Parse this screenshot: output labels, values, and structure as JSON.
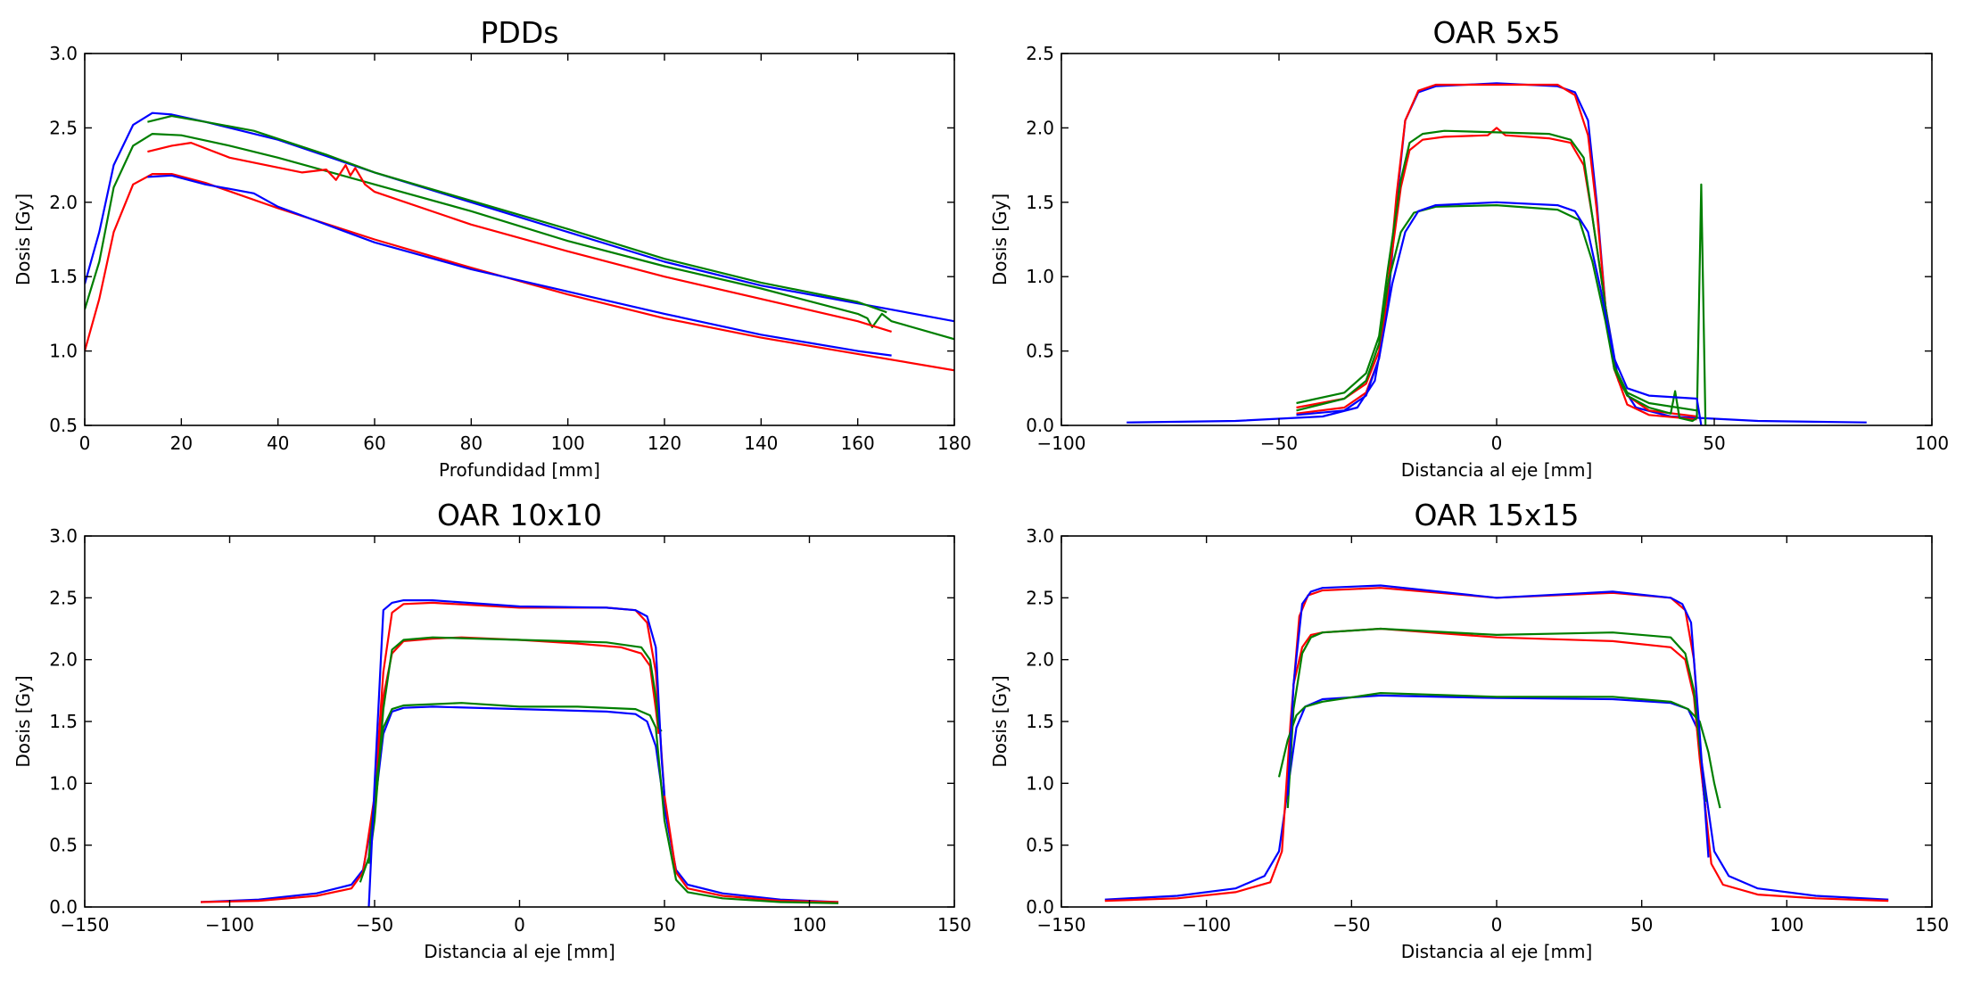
{
  "colors": {
    "blue": "#0000ff",
    "red": "#ff0000",
    "green": "#007f00"
  },
  "chart_data": [
    {
      "type": "line",
      "title": "PDDs",
      "xlabel": "Profundidad [mm]",
      "ylabel": "Dosis [Gy]",
      "xlim": [
        0,
        180
      ],
      "ylim": [
        0.5,
        3.0
      ],
      "xticks": [
        "0",
        "20",
        "40",
        "60",
        "80",
        "100",
        "120",
        "140",
        "160",
        "180"
      ],
      "yticks": [
        "0.5",
        "1.0",
        "1.5",
        "2.0",
        "2.5",
        "3.0"
      ],
      "grid": false,
      "series": [
        {
          "color": "blue",
          "x": [
            0,
            3,
            6,
            10,
            14,
            18,
            25,
            40,
            60,
            80,
            100,
            120,
            140,
            160,
            180
          ],
          "y": [
            1.45,
            1.8,
            2.25,
            2.52,
            2.6,
            2.59,
            2.54,
            2.42,
            2.2,
            2.0,
            1.8,
            1.6,
            1.44,
            1.32,
            1.2
          ]
        },
        {
          "color": "green",
          "x": [
            0,
            3,
            6,
            10,
            14,
            20,
            30,
            40,
            60,
            80,
            100,
            120,
            140,
            160,
            162,
            163,
            165,
            167,
            180
          ],
          "y": [
            1.28,
            1.6,
            2.1,
            2.38,
            2.46,
            2.45,
            2.38,
            2.3,
            2.12,
            1.94,
            1.74,
            1.57,
            1.42,
            1.25,
            1.22,
            1.16,
            1.25,
            1.2,
            1.08
          ]
        },
        {
          "color": "red",
          "x": [
            0,
            3,
            6,
            10,
            14,
            18,
            25,
            40,
            60,
            80,
            100,
            120,
            140,
            160,
            180
          ],
          "y": [
            1.0,
            1.35,
            1.8,
            2.12,
            2.19,
            2.19,
            2.13,
            1.96,
            1.75,
            1.56,
            1.38,
            1.22,
            1.09,
            0.98,
            0.87
          ]
        },
        {
          "color": "green",
          "x": [
            13,
            18,
            25,
            35,
            50,
            60,
            80,
            100,
            120,
            140,
            160,
            166
          ],
          "y": [
            2.54,
            2.58,
            2.54,
            2.48,
            2.32,
            2.2,
            2.01,
            1.82,
            1.62,
            1.46,
            1.33,
            1.26
          ]
        },
        {
          "color": "red",
          "x": [
            13,
            18,
            22,
            30,
            45,
            50,
            52,
            54,
            55,
            56,
            58,
            60,
            80,
            100,
            120,
            140,
            160,
            167
          ],
          "y": [
            2.34,
            2.38,
            2.4,
            2.3,
            2.2,
            2.22,
            2.15,
            2.25,
            2.18,
            2.23,
            2.12,
            2.07,
            1.85,
            1.67,
            1.5,
            1.35,
            1.2,
            1.13
          ]
        },
        {
          "color": "blue",
          "x": [
            13,
            18,
            25,
            35,
            40,
            60,
            80,
            100,
            120,
            140,
            160,
            167
          ],
          "y": [
            2.17,
            2.18,
            2.12,
            2.06,
            1.97,
            1.73,
            1.55,
            1.4,
            1.25,
            1.11,
            1.0,
            0.97
          ]
        }
      ]
    },
    {
      "type": "line",
      "title": "OAR 5x5",
      "xlabel": "Distancia al eje [mm]",
      "ylabel": "Dosis [Gy]",
      "xlim": [
        -100,
        100
      ],
      "ylim": [
        0.0,
        2.5
      ],
      "xticks": [
        "−100",
        "−50",
        "0",
        "50",
        "100"
      ],
      "yticks": [
        "0.0",
        "0.5",
        "1.0",
        "1.5",
        "2.0",
        "2.5"
      ],
      "grid": false,
      "series": [
        {
          "color": "blue",
          "x": [
            -85,
            -60,
            -40,
            -32,
            -28,
            -25,
            -23,
            -21,
            -18,
            -14,
            0,
            14,
            18,
            21,
            23,
            25,
            28,
            32,
            40,
            60,
            85
          ],
          "y": [
            0.02,
            0.03,
            0.06,
            0.12,
            0.3,
            0.8,
            1.5,
            2.05,
            2.24,
            2.28,
            2.3,
            2.28,
            2.24,
            2.05,
            1.5,
            0.8,
            0.3,
            0.12,
            0.06,
            0.03,
            0.02
          ]
        },
        {
          "color": "red",
          "x": [
            -46,
            -35,
            -30,
            -27,
            -25,
            -23,
            -21,
            -18,
            -14,
            0,
            14,
            18,
            21,
            23,
            25,
            27,
            30,
            35,
            46
          ],
          "y": [
            0.08,
            0.12,
            0.22,
            0.45,
            0.9,
            1.55,
            2.05,
            2.25,
            2.29,
            2.29,
            2.29,
            2.22,
            1.95,
            1.45,
            0.8,
            0.38,
            0.14,
            0.07,
            0.04
          ]
        },
        {
          "color": "red",
          "x": [
            -46,
            -35,
            -30,
            -27,
            -25,
            -22,
            -20,
            -17,
            -12,
            -2,
            0,
            2,
            12,
            17,
            20,
            22,
            25,
            27,
            30,
            35,
            46
          ],
          "y": [
            0.12,
            0.18,
            0.28,
            0.5,
            0.95,
            1.6,
            1.85,
            1.92,
            1.94,
            1.95,
            2.0,
            1.95,
            1.93,
            1.9,
            1.75,
            1.4,
            0.8,
            0.4,
            0.2,
            0.1,
            0.06
          ]
        },
        {
          "color": "green",
          "x": [
            -46,
            -35,
            -30,
            -27,
            -25,
            -22,
            -20,
            -17,
            -12,
            0,
            12,
            17,
            20,
            22,
            25,
            27,
            30,
            35,
            46
          ],
          "y": [
            0.15,
            0.22,
            0.35,
            0.6,
            1.05,
            1.65,
            1.9,
            1.96,
            1.98,
            1.97,
            1.96,
            1.92,
            1.8,
            1.4,
            0.8,
            0.4,
            0.22,
            0.15,
            0.1
          ]
        },
        {
          "color": "green",
          "x": [
            -46,
            -35,
            -30,
            -27,
            -25,
            -22,
            -19,
            -14,
            0,
            14,
            19,
            22,
            25,
            27,
            30,
            35,
            40,
            41,
            42,
            45,
            46,
            47,
            48
          ],
          "y": [
            0.1,
            0.18,
            0.3,
            0.55,
            0.95,
            1.3,
            1.43,
            1.47,
            1.48,
            1.45,
            1.38,
            1.1,
            0.7,
            0.38,
            0.2,
            0.12,
            0.08,
            0.23,
            0.05,
            0.03,
            0.05,
            1.62,
            0.0
          ]
        },
        {
          "color": "blue",
          "x": [
            -46,
            -35,
            -30,
            -27,
            -24,
            -21,
            -18,
            -14,
            0,
            14,
            18,
            21,
            24,
            27,
            30,
            35,
            46,
            47
          ],
          "y": [
            0.07,
            0.1,
            0.2,
            0.45,
            0.95,
            1.3,
            1.44,
            1.48,
            1.5,
            1.48,
            1.44,
            1.3,
            0.9,
            0.45,
            0.25,
            0.2,
            0.18,
            0.0
          ]
        }
      ]
    },
    {
      "type": "line",
      "title": "OAR 10x10",
      "xlabel": "Distancia al eje [mm]",
      "ylabel": "Dosis [Gy]",
      "xlim": [
        -150,
        150
      ],
      "ylim": [
        0.0,
        3.0
      ],
      "xticks": [
        "−150",
        "−100",
        "−50",
        "0",
        "50",
        "100",
        "150"
      ],
      "yticks": [
        "0.0",
        "0.5",
        "1.0",
        "1.5",
        "2.0",
        "2.5",
        "3.0"
      ],
      "grid": false,
      "series": [
        {
          "color": "blue",
          "x": [
            -110,
            -90,
            -70,
            -58,
            -54,
            -50,
            -47,
            -44,
            -40,
            -30,
            0,
            30,
            40,
            44,
            47,
            50,
            54,
            58,
            70,
            90,
            110
          ],
          "y": [
            0.04,
            0.06,
            0.11,
            0.18,
            0.3,
            0.8,
            1.4,
            1.58,
            1.61,
            1.62,
            1.6,
            1.58,
            1.56,
            1.5,
            1.3,
            0.8,
            0.3,
            0.18,
            0.11,
            0.06,
            0.04
          ]
        },
        {
          "color": "red",
          "x": [
            -110,
            -90,
            -70,
            -58,
            -54,
            -50,
            -47,
            -44,
            -40,
            -30,
            0,
            30,
            40,
            44,
            47,
            50,
            54,
            58,
            70,
            90,
            110
          ],
          "y": [
            0.04,
            0.05,
            0.09,
            0.15,
            0.28,
            0.9,
            1.9,
            2.38,
            2.45,
            2.46,
            2.42,
            2.42,
            2.4,
            2.3,
            1.9,
            0.9,
            0.28,
            0.15,
            0.09,
            0.05,
            0.04
          ]
        },
        {
          "color": "red",
          "x": [
            -52,
            -50,
            -47,
            -44,
            -40,
            -30,
            -20,
            0,
            20,
            35,
            42,
            45,
            47,
            48
          ],
          "y": [
            0.4,
            0.8,
            1.7,
            2.05,
            2.15,
            2.17,
            2.18,
            2.16,
            2.13,
            2.1,
            2.05,
            1.95,
            1.6,
            1.4
          ]
        },
        {
          "color": "green",
          "x": [
            -52,
            -50,
            -47,
            -44,
            -40,
            -30,
            0,
            30,
            42,
            45,
            47,
            48,
            49
          ],
          "y": [
            0.35,
            0.7,
            1.6,
            2.08,
            2.16,
            2.18,
            2.16,
            2.14,
            2.1,
            2.0,
            1.7,
            1.45,
            1.42
          ]
        },
        {
          "color": "green",
          "x": [
            -55,
            -52,
            -50,
            -47,
            -44,
            -40,
            -30,
            -20,
            0,
            20,
            40,
            45,
            47,
            50,
            54,
            58,
            70,
            90,
            110
          ],
          "y": [
            0.2,
            0.4,
            0.9,
            1.45,
            1.6,
            1.63,
            1.64,
            1.65,
            1.62,
            1.62,
            1.6,
            1.55,
            1.45,
            0.7,
            0.22,
            0.12,
            0.07,
            0.04,
            0.03
          ]
        },
        {
          "color": "blue",
          "x": [
            -52,
            -50,
            -47,
            -44,
            -40,
            -30,
            0,
            30,
            40,
            44,
            47,
            49,
            50
          ],
          "y": [
            0.0,
            1.0,
            2.4,
            2.46,
            2.48,
            2.48,
            2.43,
            2.42,
            2.4,
            2.35,
            2.1,
            1.2,
            0.9
          ]
        }
      ]
    },
    {
      "type": "line",
      "title": "OAR 15x15",
      "xlabel": "Distancia al eje [mm]",
      "ylabel": "Dosis [Gy]",
      "xlim": [
        -150,
        150
      ],
      "ylim": [
        0.0,
        3.0
      ],
      "xticks": [
        "−150",
        "−100",
        "−50",
        "0",
        "50",
        "100",
        "150"
      ],
      "yticks": [
        "0.0",
        "0.5",
        "1.0",
        "1.5",
        "2.0",
        "2.5",
        "3.0"
      ],
      "grid": false,
      "series": [
        {
          "color": "blue",
          "x": [
            -135,
            -110,
            -90,
            -80,
            -75,
            -72,
            -69,
            -66,
            -60,
            -40,
            0,
            40,
            60,
            66,
            69,
            72,
            75,
            80,
            90,
            110,
            135
          ],
          "y": [
            0.06,
            0.09,
            0.15,
            0.25,
            0.45,
            0.95,
            1.45,
            1.62,
            1.68,
            1.71,
            1.69,
            1.68,
            1.65,
            1.6,
            1.45,
            0.95,
            0.45,
            0.25,
            0.15,
            0.09,
            0.06
          ]
        },
        {
          "color": "red",
          "x": [
            -135,
            -110,
            -90,
            -78,
            -74,
            -71,
            -68,
            -65,
            -60,
            -40,
            0,
            40,
            60,
            65,
            68,
            71,
            74,
            78,
            90,
            110,
            135
          ],
          "y": [
            0.05,
            0.07,
            0.12,
            0.2,
            0.45,
            1.5,
            2.35,
            2.52,
            2.56,
            2.58,
            2.5,
            2.54,
            2.5,
            2.4,
            2.0,
            1.0,
            0.35,
            0.18,
            0.1,
            0.07,
            0.05
          ]
        },
        {
          "color": "red",
          "x": [
            -72,
            -70,
            -67,
            -64,
            -60,
            -40,
            0,
            40,
            60,
            65,
            68,
            70,
            72
          ],
          "y": [
            0.9,
            1.8,
            2.1,
            2.2,
            2.22,
            2.25,
            2.18,
            2.15,
            2.1,
            2.0,
            1.7,
            1.2,
            0.8
          ]
        },
        {
          "color": "green",
          "x": [
            -72,
            -70,
            -67,
            -64,
            -60,
            -40,
            0,
            40,
            60,
            65,
            68,
            70,
            72
          ],
          "y": [
            0.8,
            1.6,
            2.05,
            2.18,
            2.22,
            2.25,
            2.2,
            2.22,
            2.18,
            2.05,
            1.75,
            1.3,
            0.85
          ]
        },
        {
          "color": "green",
          "x": [
            -75,
            -72,
            -69,
            -66,
            -60,
            -40,
            0,
            40,
            60,
            66,
            70,
            73,
            75,
            77
          ],
          "y": [
            1.05,
            1.35,
            1.55,
            1.62,
            1.66,
            1.73,
            1.7,
            1.7,
            1.66,
            1.6,
            1.5,
            1.25,
            1.0,
            0.8
          ]
        },
        {
          "color": "blue",
          "x": [
            -72,
            -70,
            -67,
            -64,
            -60,
            -40,
            0,
            40,
            60,
            64,
            67,
            70,
            73
          ],
          "y": [
            0.9,
            1.8,
            2.45,
            2.55,
            2.58,
            2.6,
            2.5,
            2.55,
            2.5,
            2.45,
            2.3,
            1.4,
            0.4
          ]
        }
      ]
    }
  ]
}
